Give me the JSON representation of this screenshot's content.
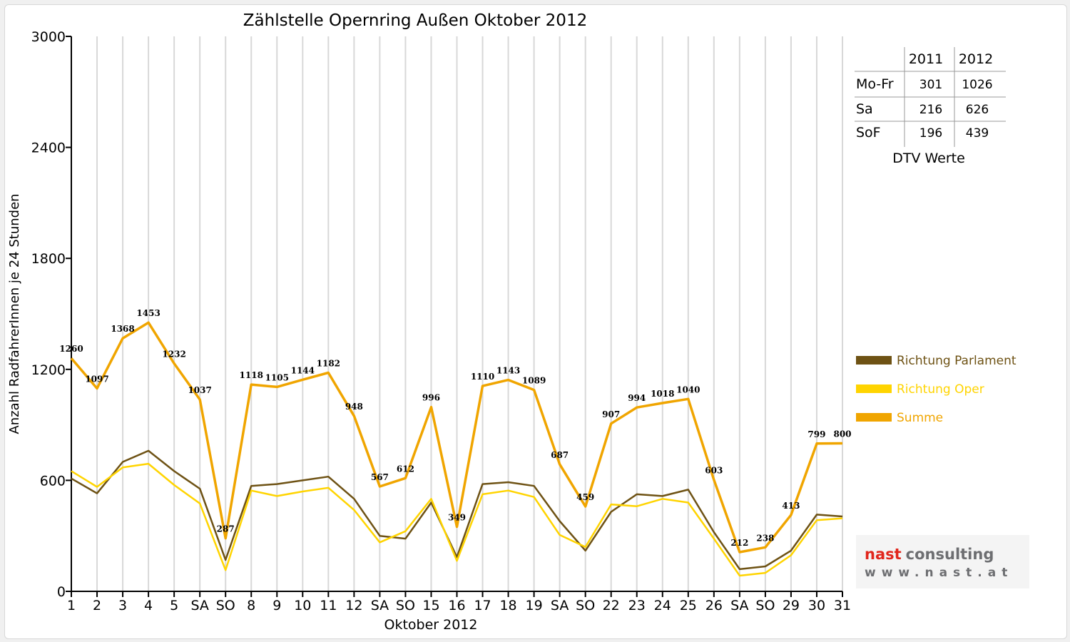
{
  "chart_data": {
    "type": "line",
    "title": "Zählstelle Opernring Außen Oktober 2012",
    "xlabel": "Oktober 2012",
    "ylabel": "Anzahl RadfahrerInnen je 24 Stunden",
    "ylim": [
      0,
      3000
    ],
    "yticks": [
      "0",
      "600",
      "1200",
      "1800",
      "2400",
      "3000"
    ],
    "grid": "vertical",
    "legend_position": "right",
    "categories": [
      "1",
      "2",
      "3",
      "4",
      "5",
      "SA",
      "SO",
      "8",
      "9",
      "10",
      "11",
      "12",
      "SA",
      "SO",
      "15",
      "16",
      "17",
      "18",
      "19",
      "SA",
      "SO",
      "22",
      "23",
      "24",
      "25",
      "26",
      "SA",
      "SO",
      "29",
      "30",
      "31"
    ],
    "red_categories": [
      6,
      13,
      20,
      25,
      27
    ],
    "series": [
      {
        "name": "Richtung Parlament",
        "color": "#6e5214",
        "values": [
          610,
          530,
          700,
          760,
          650,
          555,
          170,
          570,
          580,
          600,
          620,
          500,
          300,
          285,
          480,
          185,
          580,
          590,
          570,
          380,
          220,
          430,
          525,
          515,
          550,
          320,
          120,
          135,
          220,
          415,
          405
        ]
      },
      {
        "name": "Richtung Oper",
        "color": "#ffd400",
        "values": [
          650,
          565,
          670,
          690,
          575,
          475,
          115,
          545,
          515,
          540,
          560,
          440,
          265,
          325,
          500,
          165,
          525,
          545,
          510,
          305,
          240,
          470,
          460,
          500,
          480,
          285,
          85,
          100,
          195,
          385,
          395
        ]
      },
      {
        "name": "Summe",
        "color": "#f0a500",
        "values": [
          1260,
          1097,
          1368,
          1453,
          1232,
          1037,
          287,
          1118,
          1105,
          1144,
          1182,
          948,
          567,
          612,
          996,
          349,
          1110,
          1143,
          1089,
          687,
          459,
          907,
          994,
          1018,
          1040,
          603,
          212,
          238,
          413,
          799,
          800
        ]
      }
    ],
    "data_labels": [
      "1260",
      "1097",
      "1368",
      "1453",
      "1232",
      "1037",
      "287",
      "1118",
      "1105",
      "1144",
      "1182",
      "948",
      "567",
      "612",
      "996",
      "349",
      "1110",
      "1143",
      "1089",
      "687",
      "459",
      "907",
      "994",
      "1018",
      "1040",
      "603",
      "212",
      "238",
      "413",
      "799",
      "800"
    ],
    "annotation_table": {
      "columns": [
        "",
        "2011",
        "2012"
      ],
      "rows": [
        [
          "Mo-Fr",
          "301",
          "1026"
        ],
        [
          "Sa",
          "216",
          "626"
        ],
        [
          "SoF",
          "196",
          "439"
        ]
      ],
      "caption": "DTV Werte"
    }
  },
  "logo": {
    "word1": "nast",
    "word2": "consulting",
    "url": "www.nast.at"
  },
  "colors": {
    "red_label": "#dd0000",
    "axis": "#000000",
    "grid": "#d8d8d8"
  }
}
